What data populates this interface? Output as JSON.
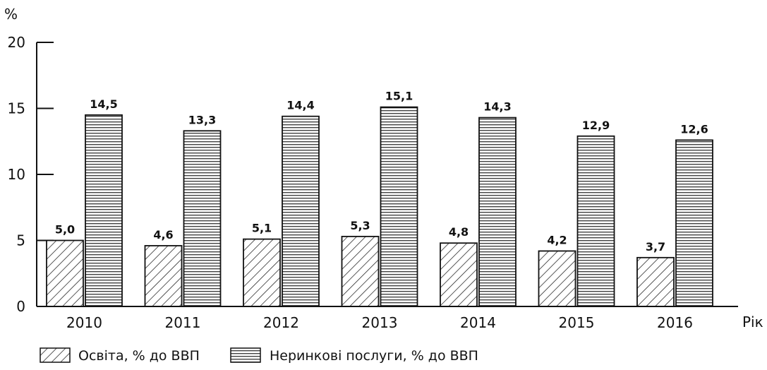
{
  "chart_data": {
    "type": "bar",
    "title": "",
    "xlabel": "Рік",
    "ylabel": "%",
    "ylim": [
      0,
      20
    ],
    "yticks": [
      "0",
      "5",
      "10",
      "15",
      "20"
    ],
    "grid": false,
    "legend_position": "bottom-left",
    "categories": [
      "2010",
      "2011",
      "2012",
      "2013",
      "2014",
      "2015",
      "2016"
    ],
    "series": [
      {
        "name": "Освіта, % до ВВП",
        "pattern": "diagonal-hatch",
        "values": [
          5.0,
          4.6,
          5.1,
          5.3,
          4.8,
          4.2,
          3.7
        ],
        "labels": [
          "5,0",
          "4,6",
          "5,1",
          "5,3",
          "4,8",
          "4,2",
          "3,7"
        ]
      },
      {
        "name": "Неринкові послуги, % до ВВП",
        "pattern": "horizontal-lines",
        "values": [
          14.5,
          13.3,
          14.4,
          15.1,
          14.3,
          12.9,
          12.6
        ],
        "labels": [
          "14,5",
          "13,3",
          "14,4",
          "15,1",
          "14,3",
          "12,9",
          "12,6"
        ]
      }
    ],
    "colors": {
      "stroke": "#111111",
      "fill": "#ffffff"
    }
  }
}
